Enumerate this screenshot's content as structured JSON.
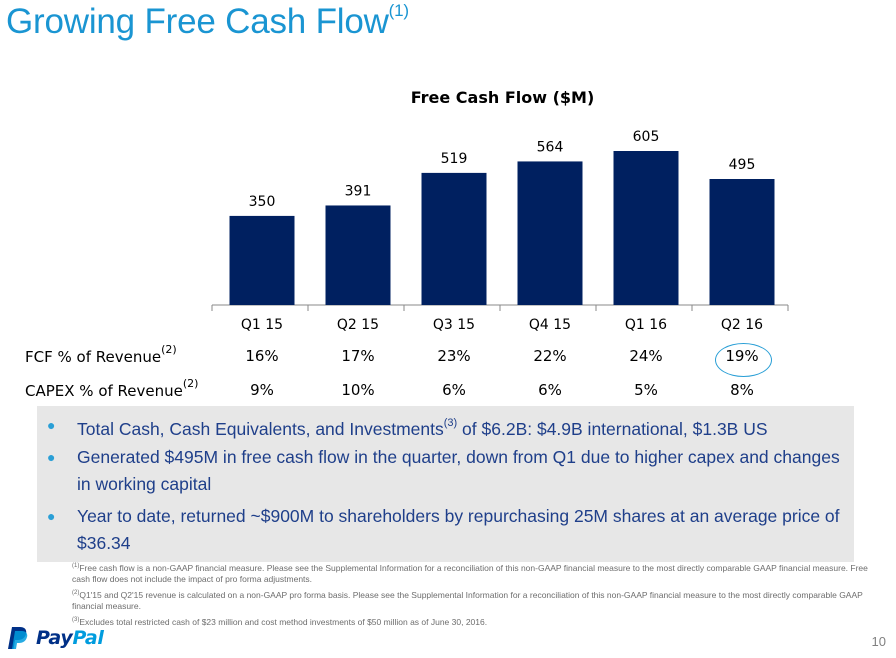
{
  "slide": {
    "title": "Growing Free Cash Flow",
    "title_footnote": "(1)",
    "page_number": "10",
    "brand": {
      "name_part1": "Pay",
      "name_part2": "Pal",
      "color_primary": "#003087",
      "color_secondary": "#009cde"
    },
    "accent_color": "#1a95d2"
  },
  "chart_data": {
    "type": "bar",
    "title": "Free Cash Flow ($M)",
    "xlabel": "",
    "ylabel": "",
    "categories": [
      "Q1 15",
      "Q2 15",
      "Q3 15",
      "Q4 15",
      "Q1 16",
      "Q2 16"
    ],
    "values": [
      350,
      391,
      519,
      564,
      605,
      495
    ],
    "data_labels": [
      "350",
      "391",
      "519",
      "564",
      "605",
      "495"
    ],
    "ylim": [
      0,
      605
    ],
    "grid": false,
    "bar_color": "#002060",
    "legend": "none"
  },
  "metrics_table": {
    "rows": [
      {
        "label": "FCF % of Revenue",
        "footnote": "(2)",
        "values": [
          "16%",
          "17%",
          "23%",
          "22%",
          "24%",
          "19%"
        ],
        "highlighted_index": 5
      },
      {
        "label": "CAPEX % of Revenue",
        "footnote": "(2)",
        "values": [
          "9%",
          "10%",
          "6%",
          "6%",
          "5%",
          "8%"
        ]
      }
    ]
  },
  "bullets": [
    {
      "text_before": "Total Cash, Cash Equivalents, and Investments",
      "footnote": "(3)",
      "text_after": " of $6.2B: $4.9B international, $1.3B US"
    },
    {
      "line1": "Generated $495M in free cash flow in the quarter, down from Q1 due to higher capex and changes",
      "line2": "in working capital"
    },
    {
      "line1": "Year to date, returned ~$900M to shareholders by repurchasing 25M shares at an average price of",
      "line2": "$36.34"
    }
  ],
  "footnotes": [
    {
      "marker": "(1)",
      "text": "Free cash flow is a non-GAAP financial measure. Please see the Supplemental Information for a reconciliation of this non-GAAP financial measure to the most directly comparable GAAP financial measure. Free cash flow does not include the impact of pro forma adjustments."
    },
    {
      "marker": "(2)",
      "text": "Q1'15 and Q2'15 revenue is calculated on a non-GAAP pro forma basis. Please see the Supplemental Information for a reconciliation of this non-GAAP financial measure to the most directly comparable GAAP financial measure."
    },
    {
      "marker": "(3)",
      "text": "Excludes total restricted cash of $23 million and cost method investments of $50 million as of June 30, 2016."
    }
  ]
}
